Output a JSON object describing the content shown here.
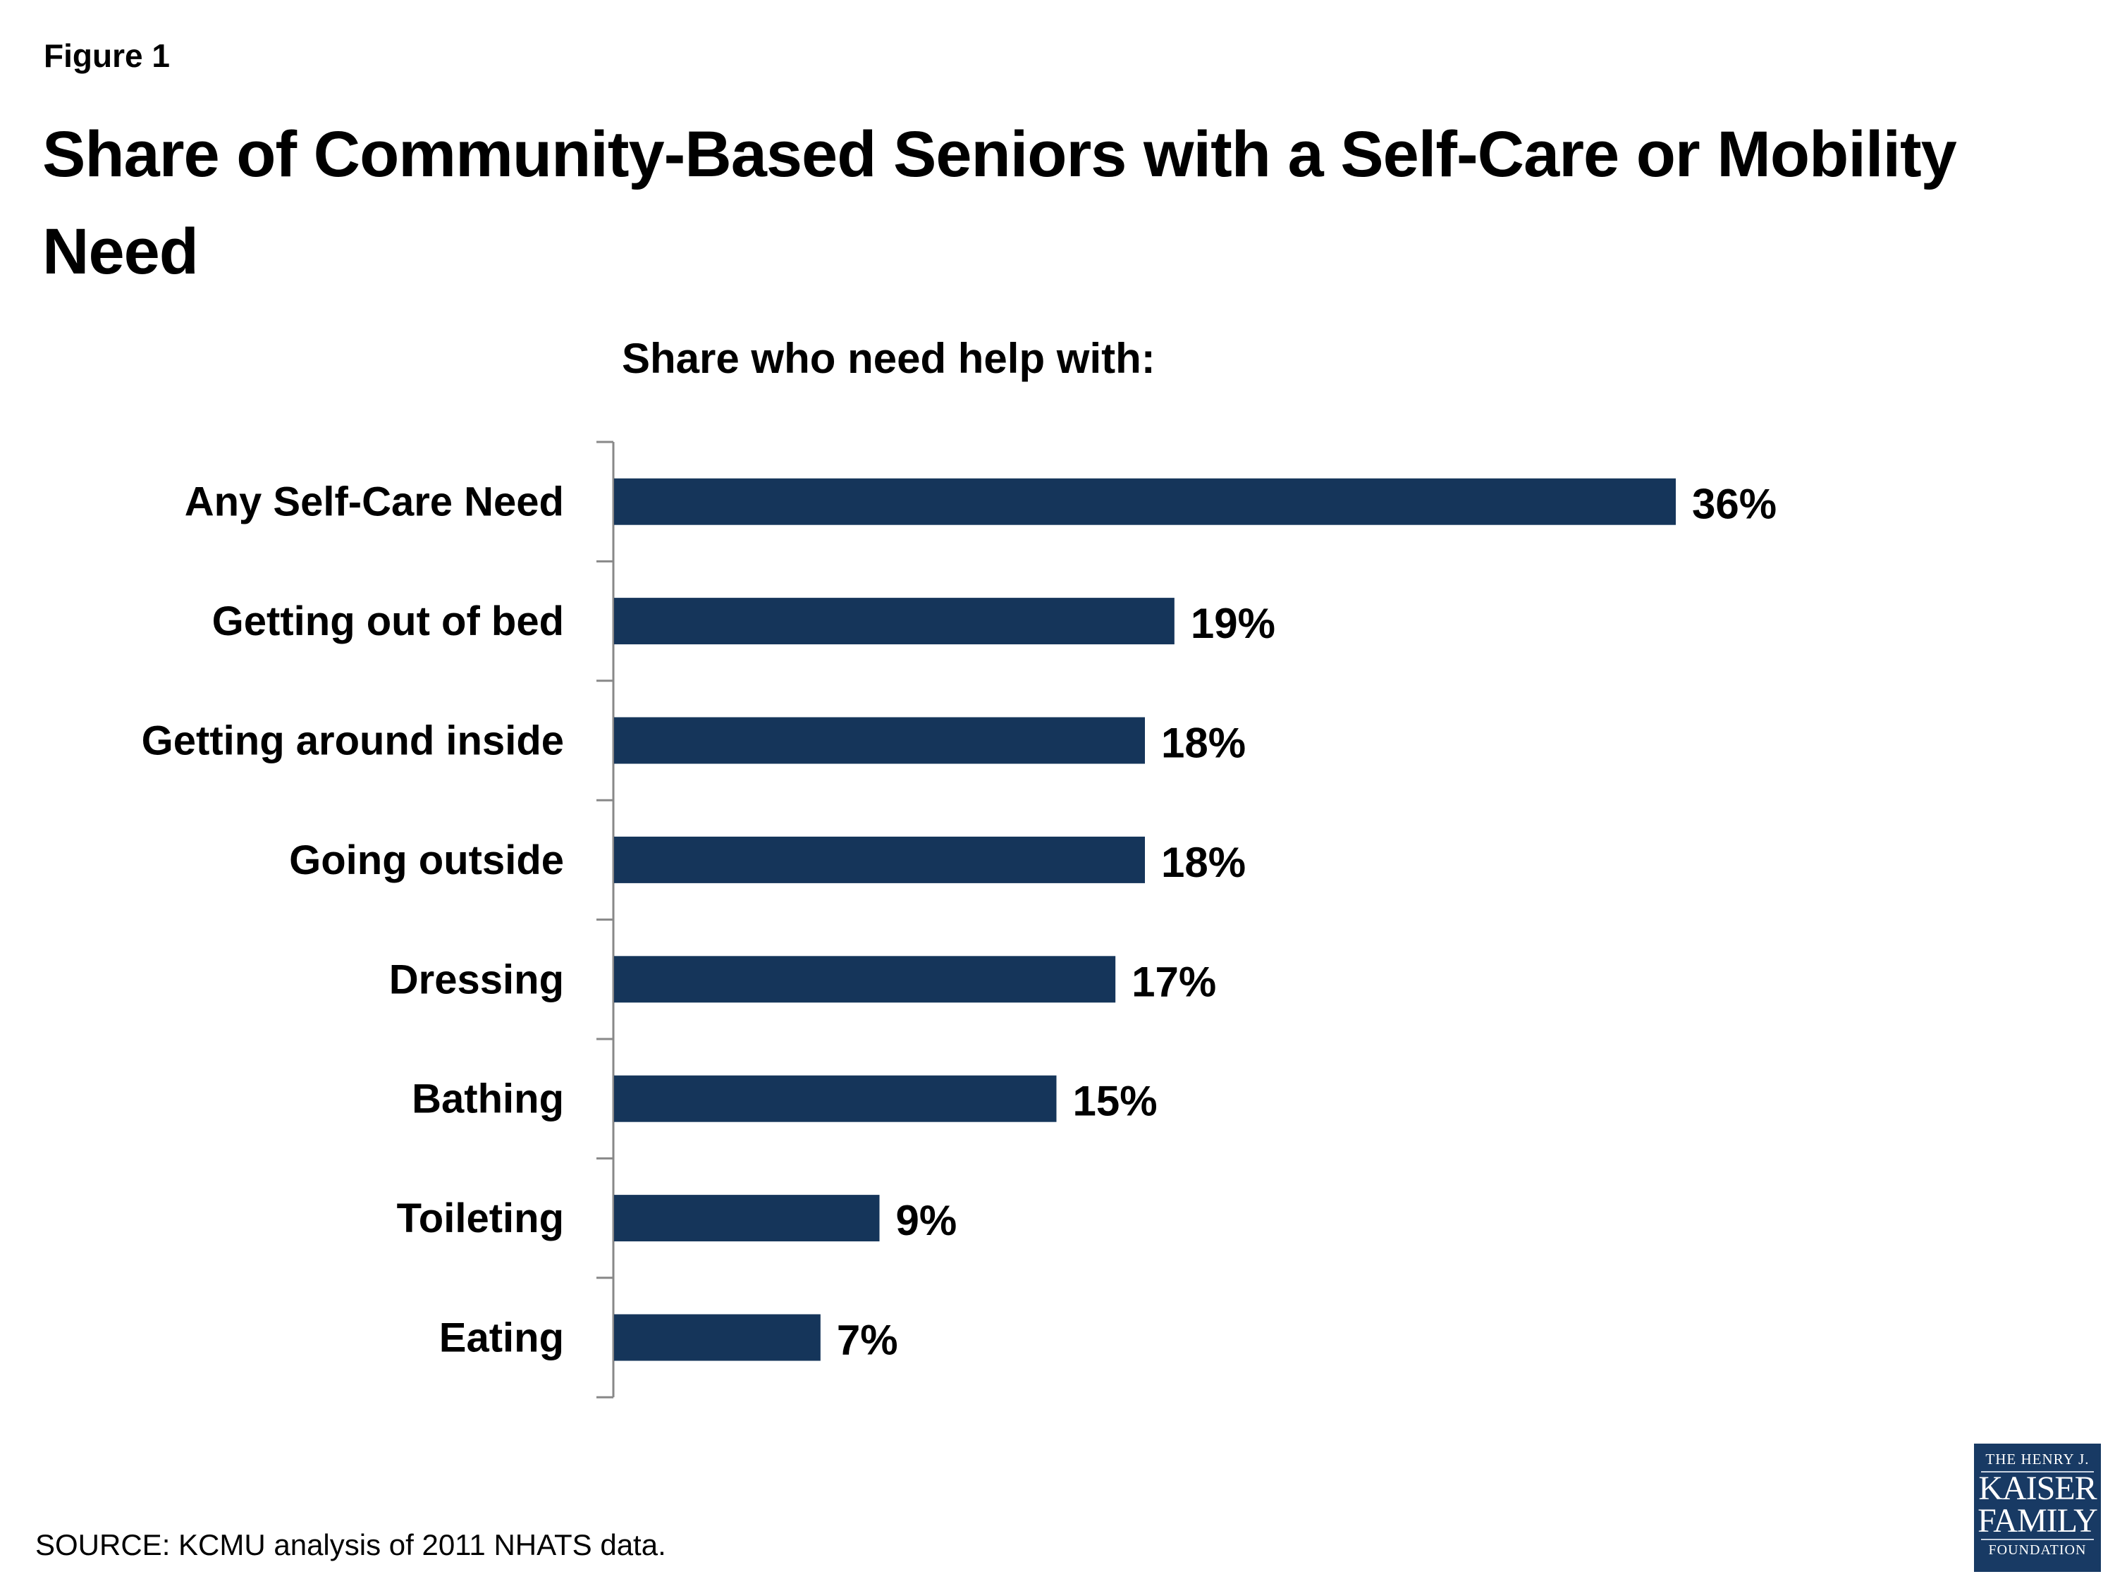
{
  "figure_label": "Figure 1",
  "title": "Share of Community-Based Seniors with a Self-Care or Mobility Need",
  "source": "SOURCE: KCMU analysis of 2011 NHATS data.",
  "logo": {
    "line1": "THE HENRY J.",
    "line2": "KAISER",
    "line3": "FAMILY",
    "line4": "FOUNDATION"
  },
  "chart_data": {
    "type": "bar",
    "orientation": "horizontal",
    "title": "Share who need help with:",
    "categories": [
      "Any Self-Care Need",
      "Getting out of bed",
      "Getting around inside",
      "Going outside",
      "Dressing",
      "Bathing",
      "Toileting",
      "Eating"
    ],
    "values": [
      36,
      19,
      18,
      18,
      17,
      15,
      9,
      7
    ],
    "data_labels": [
      "36%",
      "19%",
      "18%",
      "18%",
      "17%",
      "15%",
      "9%",
      "7%"
    ],
    "xlim": [
      0,
      36
    ],
    "grid": false,
    "bar_color": "#15355a"
  }
}
